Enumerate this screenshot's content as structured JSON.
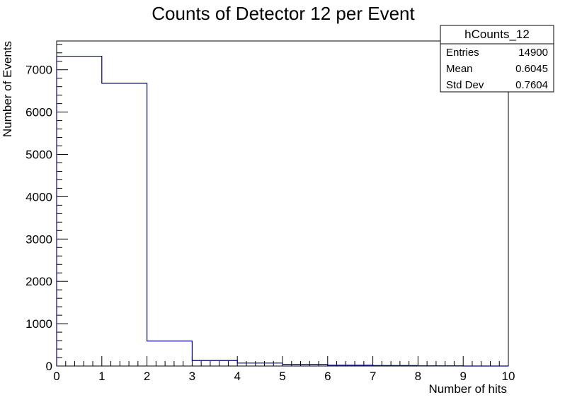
{
  "chart_data": {
    "type": "bar",
    "title": "Counts of Detector 12 per Event",
    "xlabel": "Number of hits",
    "ylabel": "Number of Events",
    "xlim": [
      0,
      10
    ],
    "ylim": [
      0,
      7680
    ],
    "x_ticks": [
      0,
      1,
      2,
      3,
      4,
      5,
      6,
      7,
      8,
      9,
      10
    ],
    "y_ticks": [
      0,
      1000,
      2000,
      3000,
      4000,
      5000,
      6000,
      7000
    ],
    "bin_edges": [
      0,
      1,
      2,
      3,
      4,
      5,
      6,
      7,
      8,
      9,
      10
    ],
    "values": [
      7320,
      6680,
      590,
      130,
      70,
      40,
      20,
      10,
      5,
      0
    ],
    "line_color": "#000080",
    "grid": false,
    "legend_placement": "top-right",
    "stats_box": {
      "name": "hCounts_12",
      "rows": [
        {
          "label": "Entries",
          "value": "14900"
        },
        {
          "label": "Mean",
          "value": "0.6045"
        },
        {
          "label": "Std Dev",
          "value": "0.7604"
        }
      ]
    }
  }
}
